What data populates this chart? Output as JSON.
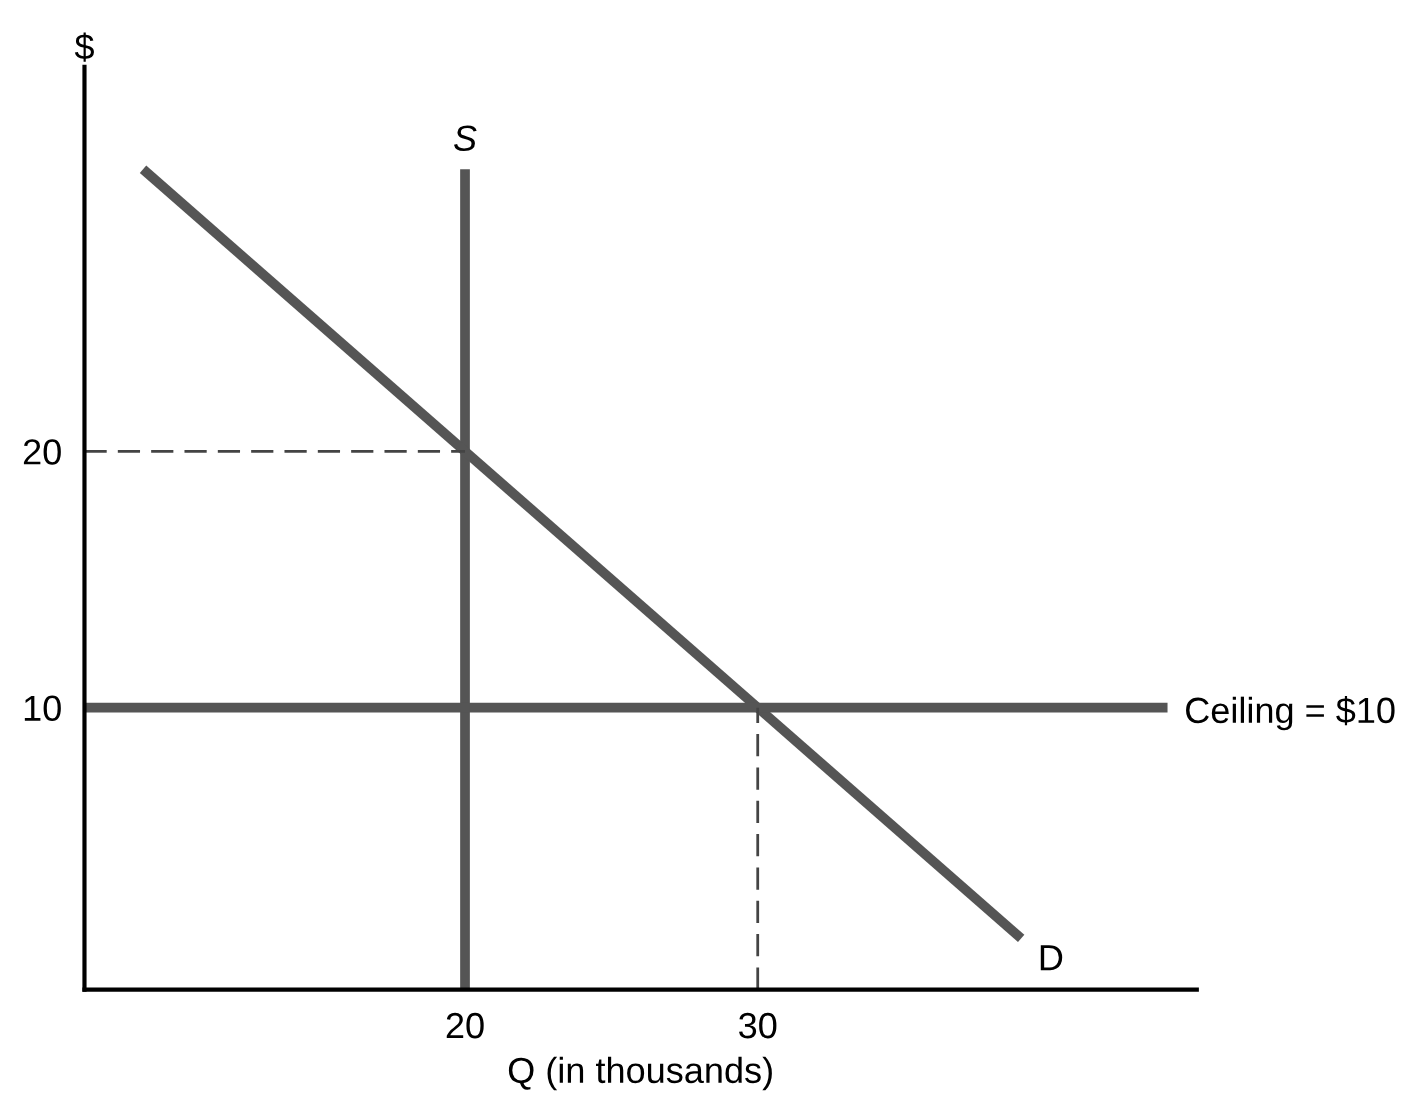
{
  "chart_data": {
    "type": "line",
    "xlabel": "Q (in thousands)",
    "ylabel": "$",
    "xlim": [
      7,
      45
    ],
    "ylim": [
      -1,
      35
    ],
    "xticks": [
      20,
      30
    ],
    "yticks": [
      10,
      20
    ],
    "grid": false,
    "legend": false,
    "marker": "none",
    "series": [
      {
        "name": "S",
        "color": "#555555",
        "x": [
          20,
          20
        ],
        "values": [
          -1,
          31
        ]
      },
      {
        "name": "D",
        "color": "#555555",
        "x": [
          9,
          39
        ],
        "values": [
          31,
          1
        ]
      },
      {
        "name": "Ceiling = $10",
        "color": "#555555",
        "x": [
          7,
          44
        ],
        "values": [
          10,
          10
        ]
      },
      {
        "color": "#444444",
        "line_style": "dashed",
        "x": [
          7,
          20
        ],
        "values": [
          20,
          20
        ]
      },
      {
        "color": "#444444",
        "line_style": "dashed",
        "x": [
          30,
          30
        ],
        "values": [
          -1,
          10
        ]
      }
    ]
  }
}
